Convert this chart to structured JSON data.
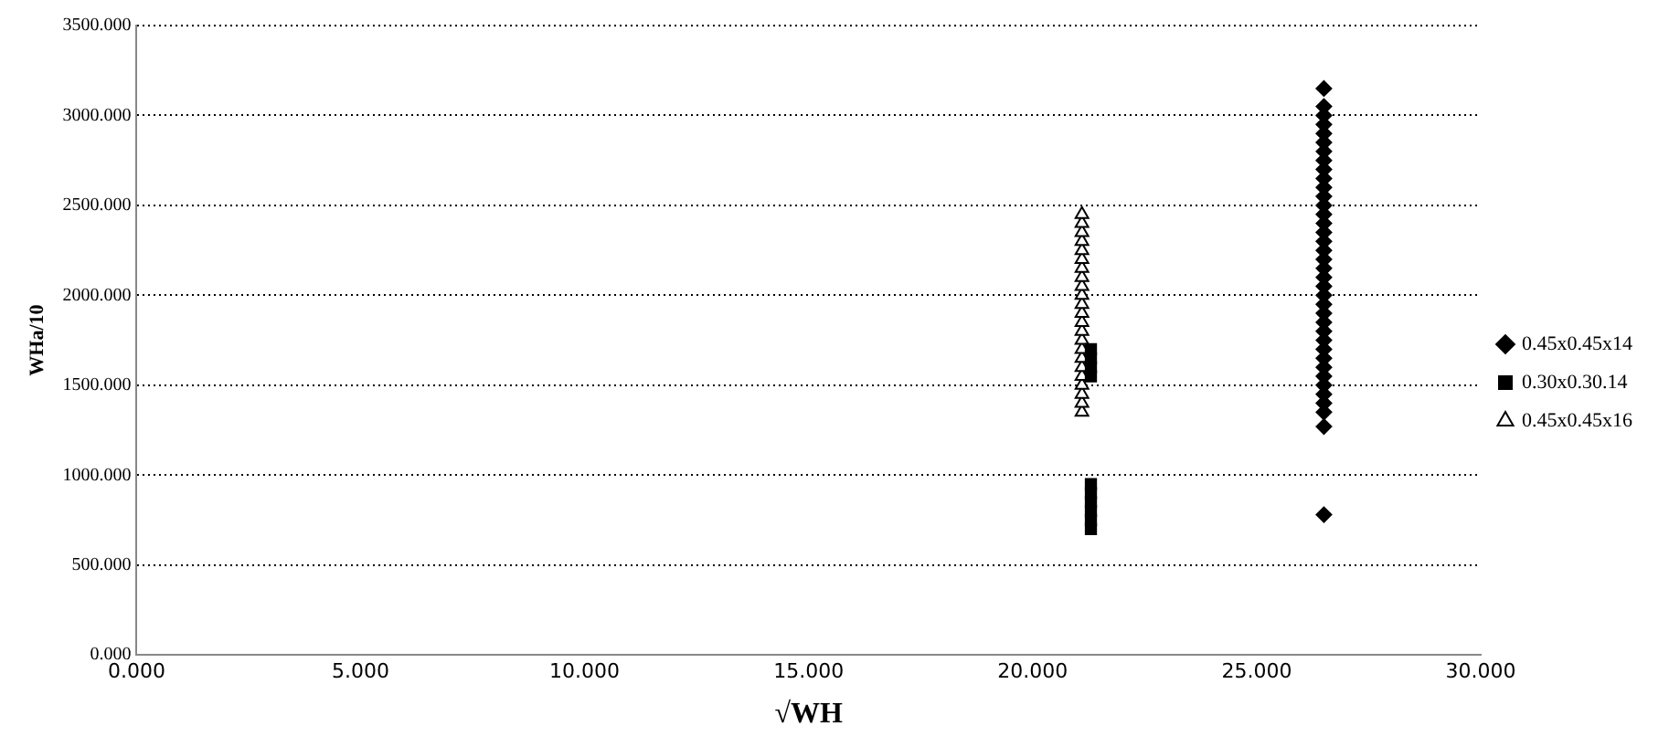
{
  "chart_data": {
    "type": "scatter",
    "xlabel": "√WH",
    "ylabel": "WHa/10",
    "xlim": [
      0,
      30
    ],
    "ylim": [
      0,
      3500
    ],
    "xticks": [
      {
        "value": 0,
        "label": "0.000"
      },
      {
        "value": 5,
        "label": "5.000"
      },
      {
        "value": 10,
        "label": "10.000"
      },
      {
        "value": 15,
        "label": "15.000"
      },
      {
        "value": 20,
        "label": "20.000"
      },
      {
        "value": 25,
        "label": "25.000"
      },
      {
        "value": 30,
        "label": "30.000"
      }
    ],
    "yticks": [
      {
        "value": 0,
        "label": "0.000"
      },
      {
        "value": 500,
        "label": "500.000"
      },
      {
        "value": 1000,
        "label": "1000.000"
      },
      {
        "value": 1500,
        "label": "1500.000"
      },
      {
        "value": 2000,
        "label": "2000.000"
      },
      {
        "value": 2500,
        "label": "2500.000"
      },
      {
        "value": 3000,
        "label": "3000.000"
      },
      {
        "value": 3500,
        "label": "3500.000"
      }
    ],
    "grid": "y",
    "legend": "right",
    "series": [
      {
        "name": "0.45x0.45x14",
        "color": "#000000",
        "marker": "diamond",
        "x": [
          26.5,
          26.5,
          26.5,
          26.5,
          26.5,
          26.5,
          26.5,
          26.5,
          26.5,
          26.5,
          26.5,
          26.5,
          26.5,
          26.5,
          26.5,
          26.5,
          26.5,
          26.5,
          26.5,
          26.5,
          26.5,
          26.5,
          26.5,
          26.5,
          26.5,
          26.5,
          26.5,
          26.5,
          26.5,
          26.5,
          26.5,
          26.5,
          26.5,
          26.5,
          26.5,
          26.5,
          26.5,
          26.5
        ],
        "values": [
          780,
          1270,
          1400,
          1450,
          1500,
          1550,
          1600,
          1650,
          1700,
          1750,
          1800,
          1850,
          1900,
          1950,
          2000,
          2050,
          2100,
          2150,
          2200,
          2250,
          2300,
          2350,
          2400,
          2450,
          2500,
          2550,
          2600,
          2650,
          2700,
          2750,
          2800,
          2850,
          2900,
          2950,
          3000,
          3050,
          3150,
          1350
        ]
      },
      {
        "name": "0.30x0.30.14",
        "color": "#000000",
        "marker": "square",
        "x": [
          21.3,
          21.3,
          21.3,
          21.3,
          21.3,
          21.3,
          21.3,
          21.3,
          21.3,
          21.3
        ],
        "values": [
          700,
          750,
          800,
          850,
          900,
          950,
          1550,
          1600,
          1650,
          1700
        ]
      },
      {
        "name": "0.45x0.45x16",
        "color": "#000000",
        "marker": "triangle",
        "x": [
          21.1,
          21.1,
          21.1,
          21.1,
          21.1,
          21.1,
          21.1,
          21.1,
          21.1,
          21.1,
          21.1,
          21.1,
          21.1,
          21.1,
          21.1,
          21.1,
          21.1,
          21.1,
          21.1,
          21.1,
          21.1,
          21.1,
          21.1
        ],
        "values": [
          1350,
          1400,
          1450,
          1500,
          1550,
          1600,
          1650,
          1700,
          1750,
          1800,
          1850,
          1900,
          1950,
          2000,
          2050,
          2100,
          2150,
          2200,
          2250,
          2300,
          2350,
          2400,
          2450
        ]
      }
    ]
  }
}
